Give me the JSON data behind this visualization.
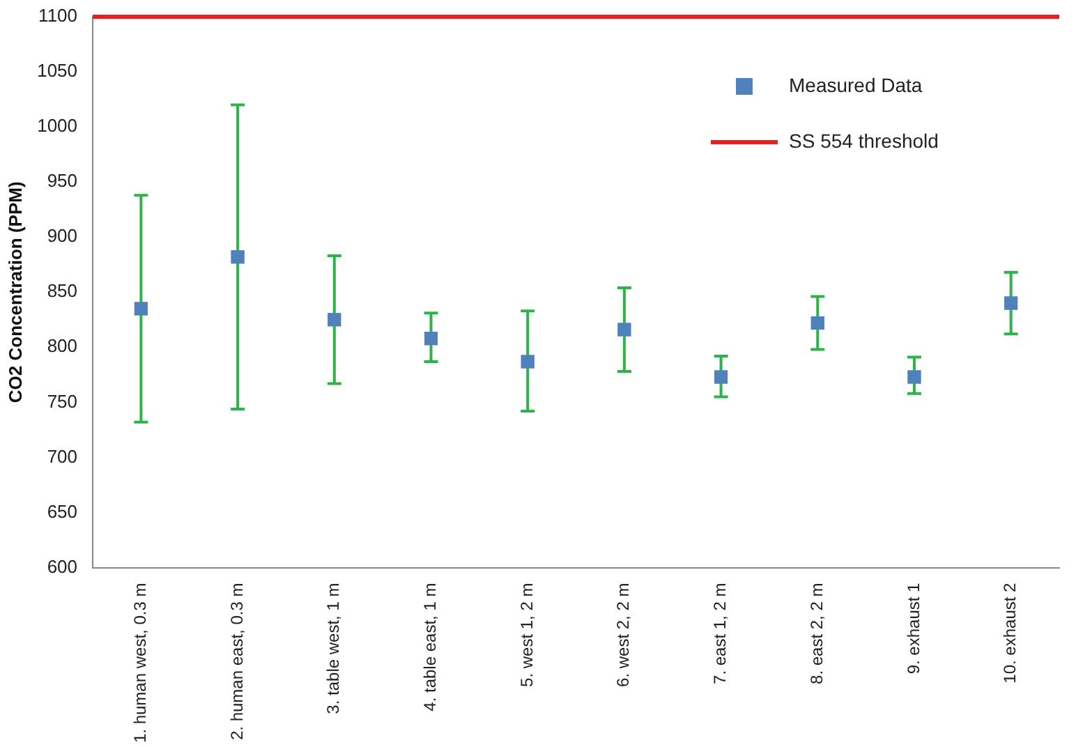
{
  "chart_data": {
    "type": "scatter",
    "ylabel": "CO2 Concentration (PPM)",
    "categories": [
      "1. human west, 0.3 m",
      "2. human east, 0.3 m",
      "3. table west, 1 m",
      "4. table east, 1 m",
      "5. west 1, 2 m",
      "6. west 2, 2 m",
      "7. east 1, 2 m",
      "8. east 2, 2 m",
      "9. exhaust 1",
      "10. exhaust 2"
    ],
    "series": [
      {
        "name": "Measured Data",
        "color": "#4f81bd",
        "values": [
          835,
          882,
          825,
          808,
          787,
          816,
          773,
          822,
          773,
          840
        ],
        "errors": [
          [
            732,
            938
          ],
          [
            744,
            1020
          ],
          [
            767,
            883
          ],
          [
            787,
            831
          ],
          [
            742,
            833
          ],
          [
            778,
            854
          ],
          [
            755,
            792
          ],
          [
            798,
            846
          ],
          [
            758,
            791
          ],
          [
            812,
            868
          ]
        ]
      }
    ],
    "ref_lines": [
      {
        "axis": "y",
        "value": 1100,
        "label": "SS 554 threshold",
        "color": "#e8201f"
      }
    ],
    "ylim": [
      600,
      1100
    ],
    "yticks": [
      600,
      650,
      700,
      750,
      800,
      850,
      900,
      950,
      1000,
      1050,
      1100
    ],
    "grid": false,
    "legend": "top right",
    "marker": "square"
  }
}
